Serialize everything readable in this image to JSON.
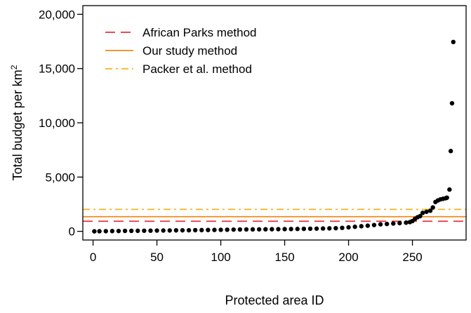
{
  "chart_data": {
    "type": "scatter",
    "xlabel": "Protected area ID",
    "ylabel": "Total budget per km",
    "ylabel_superscript": "2",
    "xlim": [
      -8,
      292
    ],
    "ylim": [
      -800,
      20800
    ],
    "x_ticks": [
      0,
      50,
      100,
      150,
      200,
      250
    ],
    "x_tick_labels": [
      "0",
      "50",
      "100",
      "150",
      "200",
      "250"
    ],
    "y_ticks": [
      0,
      5000,
      10000,
      15000,
      20000
    ],
    "y_tick_labels": [
      "0",
      "5,000",
      "10,000",
      "15,000",
      "20,000"
    ],
    "grid": false,
    "legend_position": "top-left",
    "reference_lines": [
      {
        "label": "African Parks method",
        "y": 930,
        "color": "#e8333c",
        "style": "dashed"
      },
      {
        "label": "Our study method",
        "y": 1350,
        "color": "#f08a1c",
        "style": "solid"
      },
      {
        "label": "Packer et al. method",
        "y": 2020,
        "color": "#f7b21d",
        "style": "dashdot"
      }
    ],
    "points_color": "#000000",
    "points": [
      {
        "x": 1,
        "y": 0
      },
      {
        "x": 5,
        "y": 10
      },
      {
        "x": 10,
        "y": 15
      },
      {
        "x": 15,
        "y": 25
      },
      {
        "x": 20,
        "y": 30
      },
      {
        "x": 25,
        "y": 40
      },
      {
        "x": 30,
        "y": 45
      },
      {
        "x": 35,
        "y": 50
      },
      {
        "x": 40,
        "y": 55
      },
      {
        "x": 45,
        "y": 60
      },
      {
        "x": 50,
        "y": 70
      },
      {
        "x": 55,
        "y": 75
      },
      {
        "x": 60,
        "y": 80
      },
      {
        "x": 65,
        "y": 90
      },
      {
        "x": 70,
        "y": 95
      },
      {
        "x": 75,
        "y": 100
      },
      {
        "x": 80,
        "y": 110
      },
      {
        "x": 85,
        "y": 115
      },
      {
        "x": 90,
        "y": 125
      },
      {
        "x": 95,
        "y": 130
      },
      {
        "x": 100,
        "y": 140
      },
      {
        "x": 105,
        "y": 150
      },
      {
        "x": 110,
        "y": 160
      },
      {
        "x": 115,
        "y": 170
      },
      {
        "x": 120,
        "y": 175
      },
      {
        "x": 125,
        "y": 180
      },
      {
        "x": 130,
        "y": 185
      },
      {
        "x": 135,
        "y": 190
      },
      {
        "x": 140,
        "y": 195
      },
      {
        "x": 145,
        "y": 200
      },
      {
        "x": 150,
        "y": 205
      },
      {
        "x": 155,
        "y": 210
      },
      {
        "x": 160,
        "y": 220
      },
      {
        "x": 165,
        "y": 230
      },
      {
        "x": 170,
        "y": 240
      },
      {
        "x": 175,
        "y": 250
      },
      {
        "x": 180,
        "y": 260
      },
      {
        "x": 185,
        "y": 275
      },
      {
        "x": 190,
        "y": 290
      },
      {
        "x": 195,
        "y": 320
      },
      {
        "x": 200,
        "y": 370
      },
      {
        "x": 205,
        "y": 420
      },
      {
        "x": 210,
        "y": 470
      },
      {
        "x": 215,
        "y": 520
      },
      {
        "x": 220,
        "y": 580
      },
      {
        "x": 225,
        "y": 650
      },
      {
        "x": 230,
        "y": 680
      },
      {
        "x": 235,
        "y": 720
      },
      {
        "x": 240,
        "y": 760
      },
      {
        "x": 245,
        "y": 800
      },
      {
        "x": 248,
        "y": 850
      },
      {
        "x": 250,
        "y": 950
      },
      {
        "x": 252,
        "y": 1150
      },
      {
        "x": 254,
        "y": 1300
      },
      {
        "x": 256,
        "y": 1400
      },
      {
        "x": 258,
        "y": 1700
      },
      {
        "x": 261,
        "y": 1800
      },
      {
        "x": 264,
        "y": 1900
      },
      {
        "x": 266,
        "y": 2200
      },
      {
        "x": 268,
        "y": 2700
      },
      {
        "x": 270,
        "y": 2850
      },
      {
        "x": 272,
        "y": 2950
      },
      {
        "x": 274,
        "y": 3000
      },
      {
        "x": 276,
        "y": 3050
      },
      {
        "x": 277,
        "y": 3100
      },
      {
        "x": 279,
        "y": 3850
      },
      {
        "x": 280,
        "y": 7400
      },
      {
        "x": 281,
        "y": 11800
      },
      {
        "x": 282,
        "y": 17450
      }
    ]
  }
}
